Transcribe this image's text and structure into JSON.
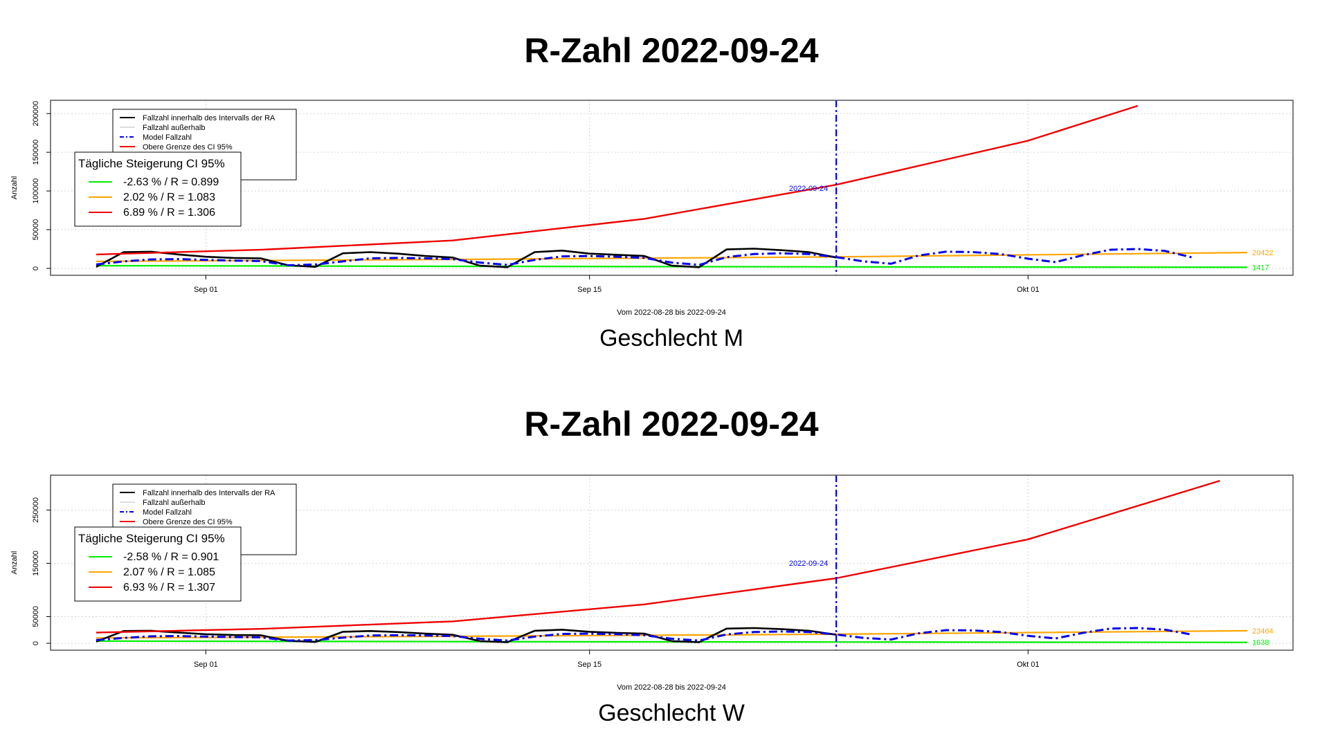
{
  "colors": {
    "observed": "#000000",
    "outside": "#bbbbbb",
    "model": "#0000ee",
    "lower": "#00ee00",
    "mid": "#ffa500",
    "upper": "#ee0000",
    "grid": "#d3d3d3"
  },
  "chart_data": [
    {
      "type": "line",
      "title": "R-Zahl 2022-09-24",
      "subtitle": "Geschlecht M",
      "xlabel": "Vom 2022-08-28 bis 2022-09-24",
      "ylabel": "Anzahl",
      "x_range": [
        "2022-08-28",
        "2022-10-09"
      ],
      "ylim": [
        0,
        210000
      ],
      "x_ticks": [
        {
          "date": "2022-09-01",
          "label": "Sep 01"
        },
        {
          "date": "2022-09-15",
          "label": "Sep 15"
        },
        {
          "date": "2022-10-01",
          "label": "Okt 01"
        }
      ],
      "y_ticks": [
        0,
        50000,
        100000,
        150000,
        200000
      ],
      "y_tick_labels": [
        "0",
        "50000",
        "100000",
        "150000",
        "200000"
      ],
      "grid": true,
      "legend": {
        "placement": "top-left",
        "entries": [
          "Fallzahl innerhalb des Intervalls der RA",
          "Fallzahl außerhalb",
          "Model Fallzahl",
          "Obere Grenze des CI 95%"
        ]
      },
      "ci_box": {
        "title": "Tägliche Steigerung CI  95%",
        "entries": [
          "-2.63 % / R = 0.899",
          "2.02 % / R = 1.083",
          "6.89 % / R = 1.306"
        ]
      },
      "vline": {
        "date": "2022-09-24",
        "label": "2022-09-24"
      },
      "end_labels": {
        "mid": "20422",
        "lower": "1417"
      },
      "series": [
        {
          "role": "observed",
          "x": [
            "2022-08-28",
            "2022-08-29",
            "2022-08-30",
            "2022-08-31",
            "2022-09-01",
            "2022-09-02",
            "2022-09-03",
            "2022-09-04",
            "2022-09-05",
            "2022-09-06",
            "2022-09-07",
            "2022-09-08",
            "2022-09-09",
            "2022-09-10",
            "2022-09-11",
            "2022-09-12",
            "2022-09-13",
            "2022-09-14",
            "2022-09-15",
            "2022-09-16",
            "2022-09-17",
            "2022-09-18",
            "2022-09-19",
            "2022-09-20",
            "2022-09-21",
            "2022-09-22",
            "2022-09-23",
            "2022-09-24"
          ],
          "y": [
            2000,
            21000,
            21500,
            18000,
            15000,
            13500,
            13000,
            4000,
            2000,
            19500,
            21000,
            19000,
            16000,
            14000,
            3500,
            1500,
            21000,
            23000,
            19000,
            17500,
            16000,
            3500,
            1500,
            24500,
            25500,
            23500,
            21000,
            14000
          ]
        },
        {
          "role": "model",
          "x": [
            "2022-08-28",
            "2022-08-29",
            "2022-08-30",
            "2022-08-31",
            "2022-09-01",
            "2022-09-02",
            "2022-09-03",
            "2022-09-04",
            "2022-09-05",
            "2022-09-06",
            "2022-09-07",
            "2022-09-08",
            "2022-09-09",
            "2022-09-10",
            "2022-09-11",
            "2022-09-12",
            "2022-09-13",
            "2022-09-14",
            "2022-09-15",
            "2022-09-16",
            "2022-09-17",
            "2022-09-18",
            "2022-09-19",
            "2022-09-20",
            "2022-09-21",
            "2022-09-22",
            "2022-09-23",
            "2022-09-24",
            "2022-09-25",
            "2022-09-26",
            "2022-09-27",
            "2022-09-28",
            "2022-09-29",
            "2022-09-30",
            "2022-10-01",
            "2022-10-02",
            "2022-10-03",
            "2022-10-04",
            "2022-10-05",
            "2022-10-06",
            "2022-10-07"
          ],
          "y": [
            5000,
            9000,
            11500,
            12000,
            11000,
            10000,
            9500,
            4000,
            5000,
            9000,
            13000,
            13500,
            13000,
            12000,
            7500,
            4500,
            11000,
            15500,
            16000,
            15000,
            13500,
            7500,
            4500,
            14500,
            18500,
            19500,
            18500,
            14500,
            9000,
            6000,
            16500,
            21500,
            21000,
            18500,
            12500,
            8000,
            17000,
            24000,
            25000,
            22500,
            14000
          ]
        },
        {
          "role": "mid",
          "x": [
            "2022-08-28",
            "2022-09-10",
            "2022-09-24",
            "2022-10-09"
          ],
          "y": [
            9000,
            11500,
            14800,
            20422
          ]
        },
        {
          "role": "lower",
          "x": [
            "2022-08-28",
            "2022-09-10",
            "2022-09-24",
            "2022-10-09"
          ],
          "y": [
            3500,
            2700,
            2000,
            1417
          ]
        },
        {
          "role": "upper",
          "x": [
            "2022-08-28",
            "2022-09-03",
            "2022-09-10",
            "2022-09-17",
            "2022-09-24",
            "2022-10-01",
            "2022-10-05"
          ],
          "y": [
            18000,
            24000,
            36000,
            64000,
            108000,
            165000,
            210000
          ]
        }
      ]
    },
    {
      "type": "line",
      "title": "R-Zahl 2022-09-24",
      "subtitle": "Geschlecht W",
      "xlabel": "Vom 2022-08-28 bis 2022-09-24",
      "ylabel": "Anzahl",
      "x_range": [
        "2022-08-28",
        "2022-10-09"
      ],
      "ylim": [
        0,
        305000
      ],
      "x_ticks": [
        {
          "date": "2022-09-01",
          "label": "Sep 01"
        },
        {
          "date": "2022-09-15",
          "label": "Sep 15"
        },
        {
          "date": "2022-10-01",
          "label": "Okt 01"
        }
      ],
      "y_ticks": [
        0,
        50000,
        150000,
        250000
      ],
      "y_tick_labels": [
        "0",
        "50000",
        "150000",
        "250000"
      ],
      "grid": true,
      "legend": {
        "placement": "top-left",
        "entries": [
          "Fallzahl innerhalb des Intervalls der RA",
          "Fallzahl außerhalb",
          "Model Fallzahl",
          "Obere Grenze des CI 95%"
        ]
      },
      "ci_box": {
        "title": "Tägliche Steigerung CI  95%",
        "entries": [
          "-2.58 % / R = 0.901",
          "2.07 % / R = 1.085",
          "6.93 % / R = 1.307"
        ]
      },
      "vline": {
        "date": "2022-09-24",
        "label": "2022-09-24"
      },
      "end_labels": {
        "mid": "23464",
        "lower": "1638"
      },
      "series": [
        {
          "role": "observed",
          "x": [
            "2022-08-28",
            "2022-08-29",
            "2022-08-30",
            "2022-08-31",
            "2022-09-01",
            "2022-09-02",
            "2022-09-03",
            "2022-09-04",
            "2022-09-05",
            "2022-09-06",
            "2022-09-07",
            "2022-09-08",
            "2022-09-09",
            "2022-09-10",
            "2022-09-11",
            "2022-09-12",
            "2022-09-13",
            "2022-09-14",
            "2022-09-15",
            "2022-09-16",
            "2022-09-17",
            "2022-09-18",
            "2022-09-19",
            "2022-09-20",
            "2022-09-21",
            "2022-09-22",
            "2022-09-23",
            "2022-09-24"
          ],
          "y": [
            3000,
            23000,
            23500,
            20000,
            17000,
            15500,
            15000,
            4500,
            2500,
            21500,
            23000,
            21000,
            18000,
            16000,
            4000,
            2000,
            23500,
            25500,
            21500,
            19500,
            18000,
            4000,
            2000,
            27500,
            28500,
            26500,
            23500,
            16000
          ]
        },
        {
          "role": "model",
          "x": [
            "2022-08-28",
            "2022-08-29",
            "2022-08-30",
            "2022-08-31",
            "2022-09-01",
            "2022-09-02",
            "2022-09-03",
            "2022-09-04",
            "2022-09-05",
            "2022-09-06",
            "2022-09-07",
            "2022-09-08",
            "2022-09-09",
            "2022-09-10",
            "2022-09-11",
            "2022-09-12",
            "2022-09-13",
            "2022-09-14",
            "2022-09-15",
            "2022-09-16",
            "2022-09-17",
            "2022-09-18",
            "2022-09-19",
            "2022-09-20",
            "2022-09-21",
            "2022-09-22",
            "2022-09-23",
            "2022-09-24",
            "2022-09-25",
            "2022-09-26",
            "2022-09-27",
            "2022-09-28",
            "2022-09-29",
            "2022-09-30",
            "2022-10-01",
            "2022-10-02",
            "2022-10-03",
            "2022-10-04",
            "2022-10-05",
            "2022-10-06",
            "2022-10-07"
          ],
          "y": [
            6000,
            10000,
            13000,
            13500,
            12500,
            11500,
            11000,
            5000,
            6000,
            10500,
            14500,
            15000,
            14500,
            13500,
            8500,
            5000,
            12500,
            17500,
            18000,
            17000,
            15000,
            8500,
            5000,
            16500,
            21000,
            22000,
            21000,
            16500,
            10000,
            7000,
            18500,
            24500,
            24000,
            21000,
            14000,
            9000,
            19500,
            27500,
            28500,
            25500,
            16000
          ]
        },
        {
          "role": "mid",
          "x": [
            "2022-08-28",
            "2022-09-10",
            "2022-09-24",
            "2022-10-09"
          ],
          "y": [
            10000,
            13000,
            17000,
            23464
          ]
        },
        {
          "role": "lower",
          "x": [
            "2022-08-28",
            "2022-09-10",
            "2022-09-24",
            "2022-10-09"
          ],
          "y": [
            4000,
            3100,
            2300,
            1638
          ]
        },
        {
          "role": "upper",
          "x": [
            "2022-08-28",
            "2022-09-03",
            "2022-09-10",
            "2022-09-17",
            "2022-09-24",
            "2022-10-01",
            "2022-10-08"
          ],
          "y": [
            20000,
            27000,
            41000,
            73000,
            122000,
            195000,
            305000
          ]
        }
      ]
    }
  ]
}
